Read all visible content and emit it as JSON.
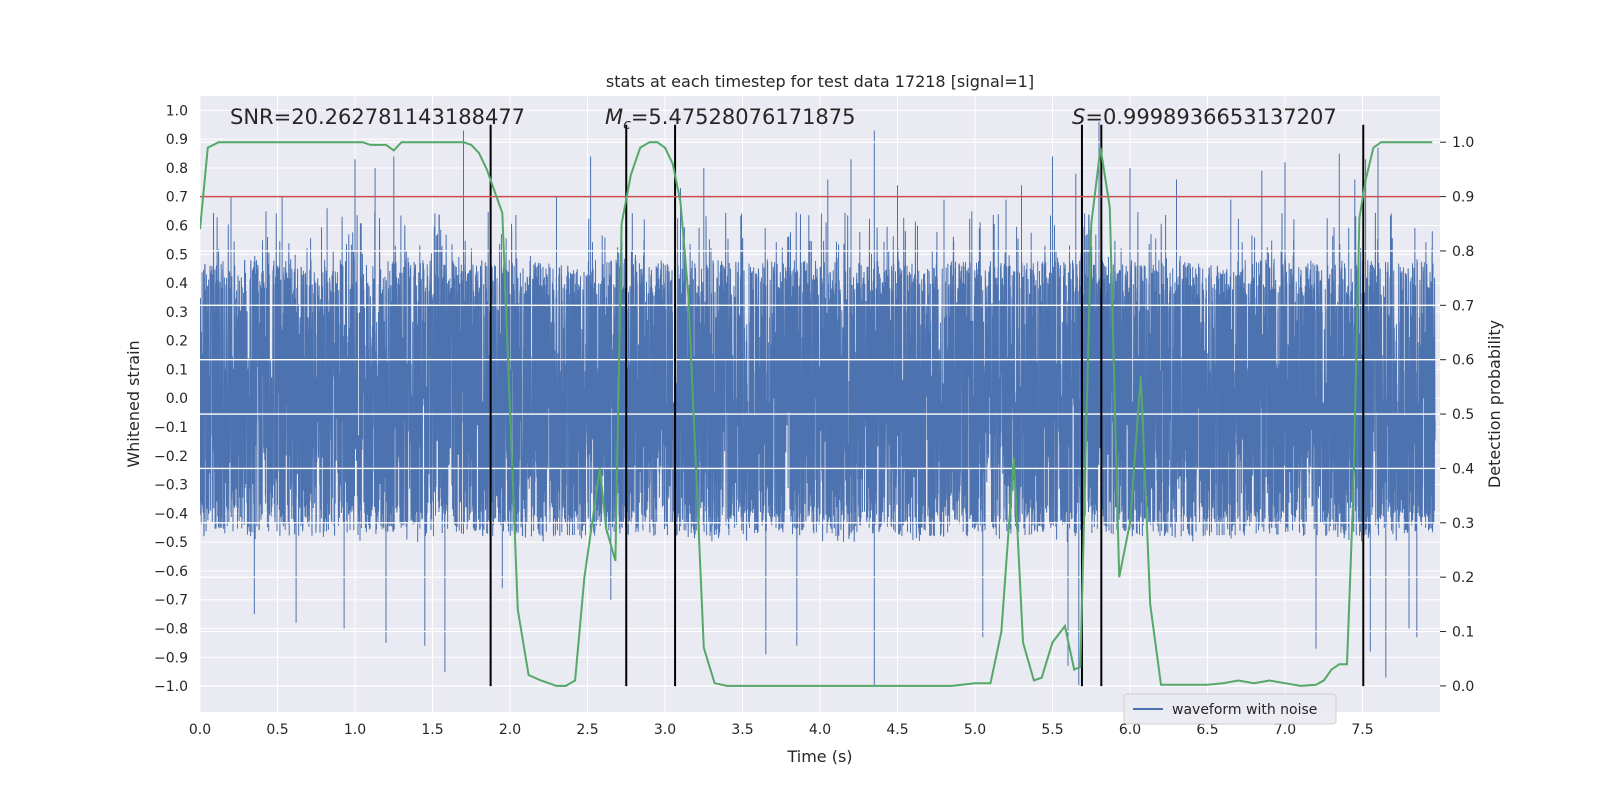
{
  "chart_data": {
    "type": "line",
    "title": "stats at each timestep for test data 17218 [signal=1]",
    "xlabel": "Time (s)",
    "ylabel_left": "Whitened strain",
    "ylabel_right": "Detection probability",
    "xlim": [
      0.0,
      8.0
    ],
    "ylim_left": [
      -1.09,
      1.05
    ],
    "ylim_right": [
      -0.048,
      1.085
    ],
    "x_ticks": [
      0.0,
      0.5,
      1.0,
      1.5,
      2.0,
      2.5,
      3.0,
      3.5,
      4.0,
      4.5,
      5.0,
      5.5,
      6.0,
      6.5,
      7.0,
      7.5
    ],
    "x_tick_labels": [
      "0.0",
      "0.5",
      "1.0",
      "1.5",
      "2.0",
      "2.5",
      "3.0",
      "3.5",
      "4.0",
      "4.5",
      "5.0",
      "5.5",
      "6.0",
      "6.5",
      "7.0",
      "7.5"
    ],
    "y_left_ticks": [
      1.0,
      0.9,
      0.8,
      0.7,
      0.6,
      0.5,
      0.4,
      0.3,
      0.2,
      0.1,
      0.0,
      -0.1,
      -0.2,
      -0.3,
      -0.4,
      -0.5,
      -0.6,
      -0.7,
      -0.8,
      -0.9,
      -1.0
    ],
    "y_left_tick_labels": [
      "1.0",
      "0.9",
      "0.8",
      "0.7",
      "0.6",
      "0.5",
      "0.4",
      "0.3",
      "0.2",
      "0.1",
      "0.0",
      "−0.1",
      "−0.2",
      "−0.3",
      "−0.4",
      "−0.5",
      "−0.6",
      "−0.7",
      "−0.8",
      "−0.9",
      "−1.0"
    ],
    "y_right_ticks": [
      1.0,
      0.9,
      0.8,
      0.7,
      0.6,
      0.5,
      0.4,
      0.3,
      0.2,
      0.1,
      0.0
    ],
    "y_right_tick_labels": [
      "1.0",
      "0.9",
      "0.8",
      "0.7",
      "0.6",
      "0.5",
      "0.4",
      "0.3",
      "0.2",
      "0.1",
      "0.0"
    ],
    "annotations": {
      "snr": "SNR=20.262781143188477",
      "mc_symbol": "M",
      "mc_subscript": "c",
      "mc_value": "=5.47528076171875",
      "s_symbol": "S",
      "s_value": "=0.9998936653137207"
    },
    "threshold": {
      "value": 0.9,
      "axis": "right",
      "color": "#c44e52"
    },
    "vertical_markers_x": [
      1.875,
      2.75,
      3.065,
      5.69,
      5.815,
      7.505
    ],
    "vertical_markers_range_left": [
      -1.0,
      0.95
    ],
    "waveform": {
      "name": "waveform with noise",
      "color": "#4c72b0",
      "sample_rate": 2048,
      "core_amplitude": 0.36,
      "tail_low": -0.5,
      "tail_high": 0.65,
      "spikes": [
        [
          0.2,
          0.7
        ],
        [
          0.35,
          -0.75
        ],
        [
          0.53,
          0.7
        ],
        [
          0.62,
          -0.78
        ],
        [
          0.82,
          0.66
        ],
        [
          0.93,
          -0.8
        ],
        [
          1.0,
          0.83
        ],
        [
          1.13,
          0.8
        ],
        [
          1.25,
          0.84
        ],
        [
          1.2,
          -0.85
        ],
        [
          1.45,
          -0.86
        ],
        [
          1.58,
          -0.95
        ],
        [
          1.7,
          0.93
        ],
        [
          1.95,
          -0.66
        ],
        [
          2.3,
          0.7
        ],
        [
          2.52,
          0.84
        ],
        [
          2.65,
          -0.7
        ],
        [
          3.1,
          0.73
        ],
        [
          3.25,
          0.8
        ],
        [
          3.65,
          -0.89
        ],
        [
          3.85,
          -0.86
        ],
        [
          4.05,
          0.76
        ],
        [
          4.2,
          0.83
        ],
        [
          4.35,
          0.93
        ],
        [
          4.35,
          -1.0
        ],
        [
          4.5,
          0.74
        ],
        [
          4.8,
          0.69
        ],
        [
          5.05,
          -0.83
        ],
        [
          5.2,
          0.69
        ],
        [
          5.3,
          0.74
        ],
        [
          5.5,
          0.84
        ],
        [
          5.65,
          0.78
        ],
        [
          5.6,
          -0.93
        ],
        [
          5.67,
          -1.0
        ],
        [
          5.8,
          0.96
        ],
        [
          6.0,
          0.8
        ],
        [
          6.3,
          0.76
        ],
        [
          6.65,
          0.69
        ],
        [
          6.85,
          0.79
        ],
        [
          7.0,
          0.82
        ],
        [
          7.2,
          -0.87
        ],
        [
          7.35,
          0.85
        ],
        [
          7.45,
          0.76
        ],
        [
          7.52,
          0.83
        ],
        [
          7.55,
          -0.88
        ],
        [
          7.6,
          0.87
        ],
        [
          7.65,
          -0.97
        ],
        [
          7.8,
          -0.8
        ],
        [
          7.85,
          -0.83
        ],
        [
          7.95,
          0.58
        ]
      ]
    },
    "probability": {
      "name": "detection probability",
      "color": "#55a868",
      "x": [
        0.0,
        0.05,
        0.12,
        0.2,
        0.3,
        0.4,
        0.5,
        0.6,
        0.7,
        0.8,
        0.9,
        1.0,
        1.05,
        1.1,
        1.2,
        1.25,
        1.3,
        1.35,
        1.4,
        1.5,
        1.6,
        1.7,
        1.75,
        1.8,
        1.85,
        1.9,
        1.95,
        2.05,
        2.12,
        2.2,
        2.3,
        2.36,
        2.42,
        2.48,
        2.52,
        2.58,
        2.62,
        2.68,
        2.72,
        2.78,
        2.84,
        2.9,
        2.95,
        3.0,
        3.05,
        3.1,
        3.15,
        3.2,
        3.25,
        3.32,
        3.4,
        3.5,
        3.7,
        3.9,
        4.1,
        4.3,
        4.5,
        4.7,
        4.85,
        5.0,
        5.1,
        5.17,
        5.25,
        5.31,
        5.38,
        5.43,
        5.5,
        5.58,
        5.64,
        5.68,
        5.75,
        5.81,
        5.87,
        5.93,
        6.0,
        6.07,
        6.13,
        6.2,
        6.3,
        6.5,
        6.6,
        6.7,
        6.8,
        6.9,
        7.0,
        7.1,
        7.2,
        7.25,
        7.3,
        7.35,
        7.4,
        7.44,
        7.48,
        7.52,
        7.57,
        7.62,
        7.7,
        7.8,
        7.95
      ],
      "y": [
        0.84,
        0.99,
        1.0,
        1.0,
        1.0,
        1.0,
        1.0,
        1.0,
        1.0,
        1.0,
        1.0,
        1.0,
        1.0,
        0.995,
        0.995,
        0.985,
        1.0,
        1.0,
        1.0,
        1.0,
        1.0,
        1.0,
        0.995,
        0.98,
        0.95,
        0.91,
        0.87,
        0.14,
        0.02,
        0.01,
        0.0,
        0.0,
        0.01,
        0.2,
        0.28,
        0.4,
        0.29,
        0.23,
        0.85,
        0.94,
        0.99,
        1.0,
        1.0,
        0.99,
        0.96,
        0.89,
        0.72,
        0.4,
        0.07,
        0.005,
        0.0,
        0.0,
        0.0,
        0.0,
        0.0,
        0.0,
        0.0,
        0.0,
        0.0,
        0.005,
        0.005,
        0.1,
        0.42,
        0.08,
        0.01,
        0.015,
        0.08,
        0.11,
        0.03,
        0.035,
        0.85,
        0.99,
        0.88,
        0.2,
        0.3,
        0.57,
        0.15,
        0.002,
        0.002,
        0.002,
        0.005,
        0.01,
        0.005,
        0.01,
        0.005,
        0.0,
        0.002,
        0.01,
        0.03,
        0.04,
        0.04,
        0.35,
        0.86,
        0.93,
        0.99,
        1.0,
        1.0,
        1.0,
        1.0
      ]
    },
    "legend": {
      "entries": [
        "waveform with noise"
      ],
      "placement": "lower-right"
    },
    "grid": true,
    "colors": {
      "plot_bg": "#eaeaf2",
      "grid": "#ffffff",
      "marker": "#000000"
    }
  }
}
